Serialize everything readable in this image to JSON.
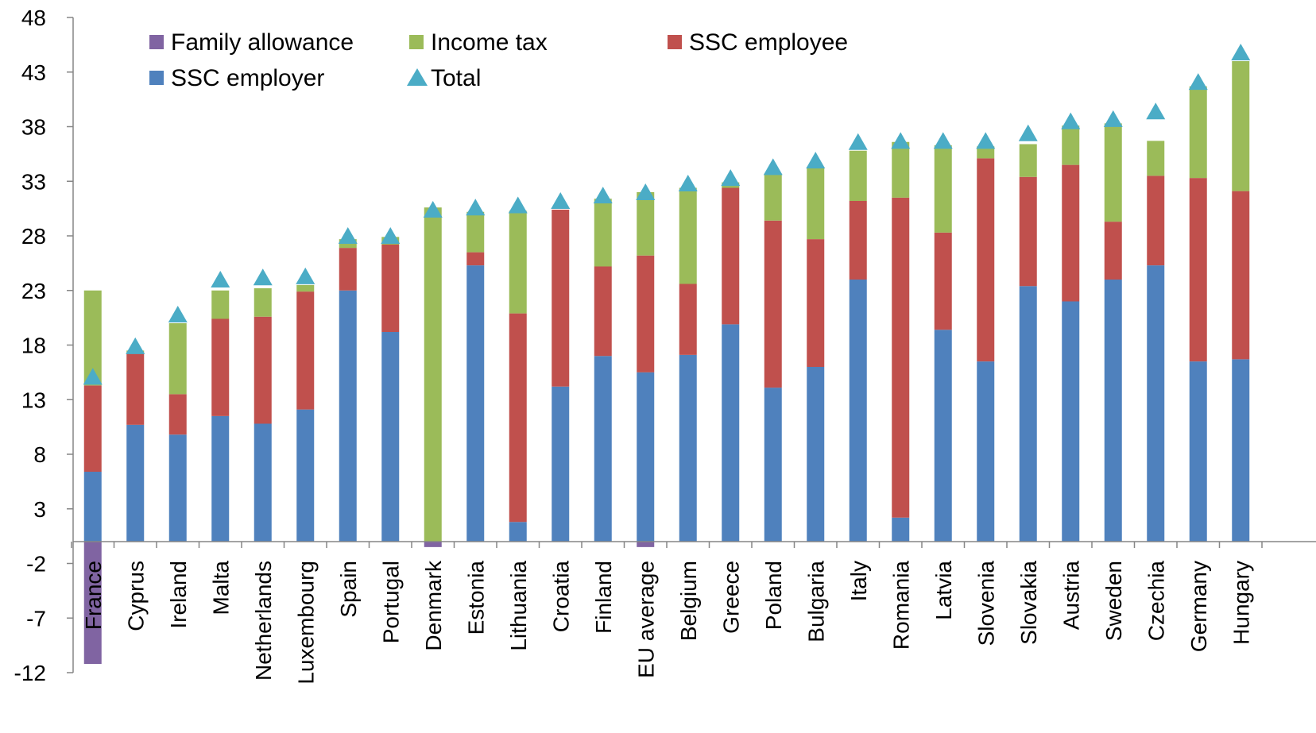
{
  "chart_data": {
    "type": "bar",
    "stacked": true,
    "ylim": [
      -12,
      48
    ],
    "yticks": [
      -12,
      -7,
      -2,
      3,
      8,
      13,
      18,
      23,
      28,
      33,
      38,
      43,
      48
    ],
    "grid": false,
    "legend_position": "top-left",
    "categories": [
      "France",
      "Cyprus",
      "Ireland",
      "Malta",
      "Netherlands",
      "Luxembourg",
      "Spain",
      "Portugal",
      "Denmark",
      "Estonia",
      "Lithuania",
      "Croatia",
      "Finland",
      "EU average",
      "Belgium",
      "Greece",
      "Poland",
      "Bulgaria",
      "Italy",
      "Romania",
      "Latvia",
      "Slovenia",
      "Slovakia",
      "Austria",
      "Sweden",
      "Czechia",
      "Germany",
      "Hungary"
    ],
    "series": [
      {
        "name": "SSC employer",
        "color": "#4f81bd",
        "values": [
          6.4,
          10.7,
          9.8,
          11.5,
          10.8,
          12.1,
          23.0,
          19.2,
          0,
          25.3,
          1.8,
          14.2,
          17.0,
          15.5,
          17.1,
          19.9,
          14.1,
          16.0,
          24.0,
          2.2,
          19.4,
          16.5,
          23.4,
          22.0,
          24.0,
          25.3,
          16.5,
          16.7
        ]
      },
      {
        "name": "SSC employee",
        "color": "#c0504d",
        "values": [
          7.9,
          6.6,
          3.7,
          8.9,
          9.8,
          10.8,
          3.9,
          8.0,
          0,
          1.2,
          19.1,
          16.2,
          8.2,
          10.7,
          6.5,
          12.5,
          15.3,
          11.7,
          7.2,
          29.3,
          8.9,
          18.6,
          10.0,
          12.5,
          5.3,
          8.2,
          16.8,
          15.4
        ]
      },
      {
        "name": "Income tax",
        "color": "#9bbb59",
        "values": [
          8.7,
          0.2,
          6.5,
          2.6,
          2.6,
          0.6,
          0.8,
          0.7,
          30.6,
          3.7,
          9.4,
          0,
          6.2,
          5.8,
          8.8,
          0.5,
          4.3,
          6.6,
          4.6,
          5.1,
          8.0,
          1.1,
          3.0,
          3.6,
          9.0,
          3.2,
          8.4,
          11.9
        ]
      },
      {
        "name": "Family allowance",
        "color": "#8064a2",
        "values": [
          -11.2,
          0,
          0,
          0,
          0,
          0,
          0,
          0,
          -0.5,
          0,
          0,
          0,
          0,
          -0.5,
          0,
          0,
          0,
          0,
          0,
          0,
          0,
          0,
          0,
          0,
          0,
          0,
          0,
          0
        ]
      },
      {
        "name": "Total",
        "color": "#4bacc6",
        "marker": "triangle",
        "values": [
          15.1,
          17.9,
          20.8,
          24.0,
          24.2,
          24.3,
          28.0,
          28.0,
          30.4,
          30.6,
          30.8,
          31.2,
          31.7,
          32.0,
          32.8,
          33.3,
          34.3,
          34.9,
          36.6,
          36.7,
          36.7,
          36.7,
          37.4,
          38.5,
          38.7,
          39.4,
          42.1,
          44.8
        ]
      }
    ]
  },
  "legend": {
    "items": [
      {
        "label": "Family allowance",
        "color": "#8064a2",
        "kind": "box"
      },
      {
        "label": "Income tax",
        "color": "#9bbb59",
        "kind": "box"
      },
      {
        "label": "SSC employee",
        "color": "#c0504d",
        "kind": "box"
      },
      {
        "label": "SSC employer",
        "color": "#4f81bd",
        "kind": "box"
      },
      {
        "label": "Total",
        "color": "#4bacc6",
        "kind": "triangle"
      }
    ]
  }
}
